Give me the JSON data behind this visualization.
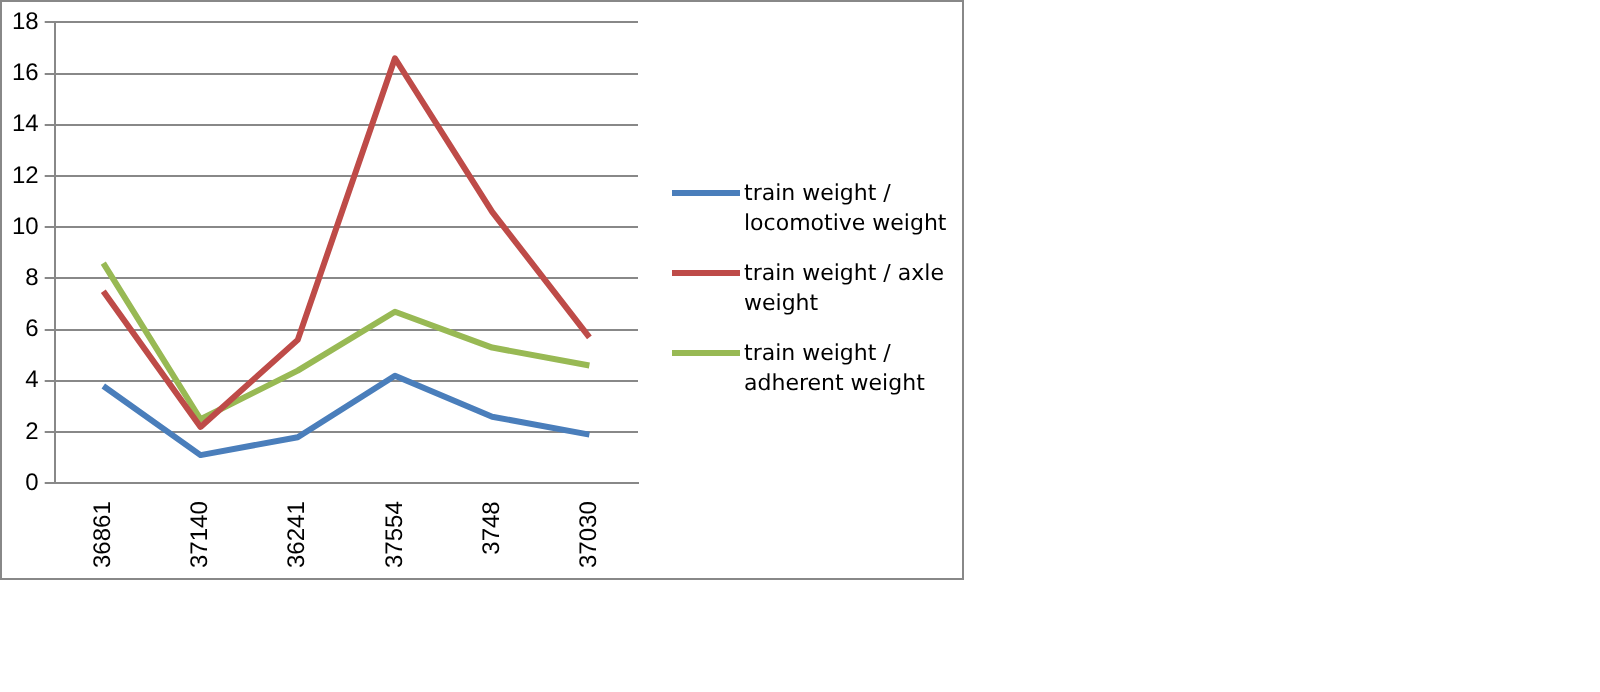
{
  "chart_data": {
    "type": "line",
    "categories": [
      "36861",
      "37140",
      "36241",
      "37554",
      "3748",
      "37030"
    ],
    "series": [
      {
        "name": "train weight / locomotive weight",
        "color": "#4a7ebb",
        "values": [
          3.8,
          1.1,
          1.8,
          4.2,
          2.6,
          1.9
        ]
      },
      {
        "name": "train weight / axle weight",
        "color": "#be4b48",
        "values": [
          7.5,
          2.2,
          5.6,
          16.6,
          10.6,
          5.7
        ]
      },
      {
        "name": "train weight / adherent weight",
        "color": "#98b954",
        "values": [
          8.6,
          2.5,
          4.4,
          6.7,
          5.3,
          4.6
        ]
      }
    ],
    "ylim": [
      0,
      18
    ],
    "yticks": [
      0,
      2,
      4,
      6,
      8,
      10,
      12,
      14,
      16,
      18
    ],
    "grid": "y",
    "legend": "right",
    "marker": "none"
  }
}
